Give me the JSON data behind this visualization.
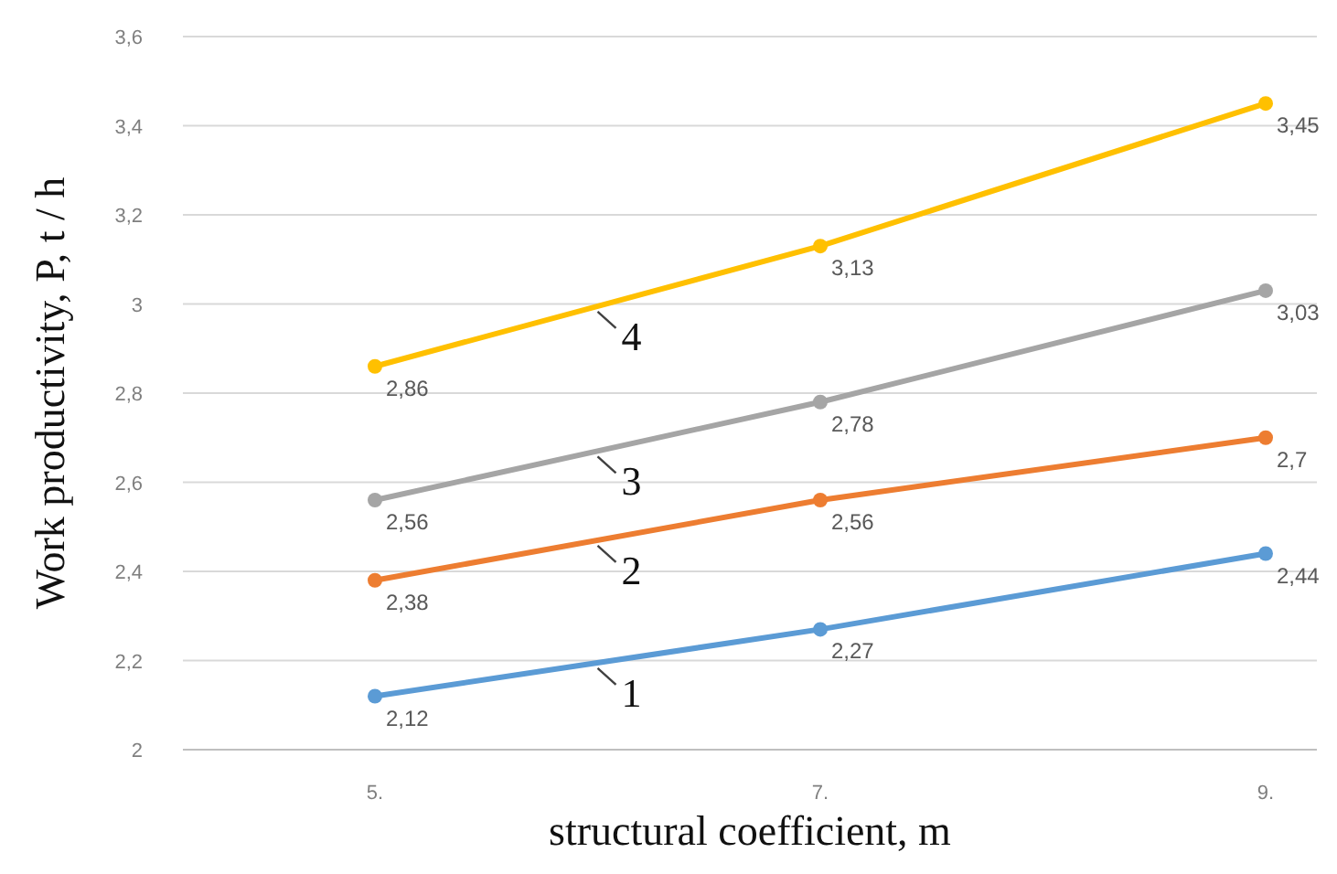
{
  "chart_data": {
    "type": "line",
    "xlabel": "structural coefficient, m",
    "ylabel": "Work productivity, P, t / h",
    "categories": [
      "5.",
      "7.",
      "9."
    ],
    "ylim": [
      2,
      3.6
    ],
    "yticks": [
      2,
      {
        "value": 2.2,
        "label": "2,2"
      },
      {
        "value": 2.4,
        "label": "2,4"
      },
      {
        "value": 2.6,
        "label": "2,6"
      },
      {
        "value": 2.8,
        "label": "2,8"
      },
      3,
      {
        "value": 3.2,
        "label": "3,2"
      },
      {
        "value": 3.4,
        "label": "3,4"
      },
      {
        "value": 3.6,
        "label": "3,6"
      }
    ],
    "grid": "y",
    "marker": "circle",
    "line_style": "solid",
    "legend": false,
    "series": [
      {
        "name": "1",
        "color": "#5b9bd5",
        "values": [
          2.12,
          2.27,
          2.44
        ],
        "value_labels": [
          "2,12",
          "2,27",
          "2,44"
        ]
      },
      {
        "name": "2",
        "color": "#ed7d31",
        "values": [
          2.38,
          2.56,
          2.7
        ],
        "value_labels": [
          "2,38",
          "2,56",
          "2,7"
        ]
      },
      {
        "name": "3",
        "color": "#a5a5a5",
        "values": [
          2.56,
          2.78,
          3.03
        ],
        "value_labels": [
          "2,56",
          "2,78",
          "3,03"
        ]
      },
      {
        "name": "4",
        "color": "#ffc000",
        "values": [
          2.86,
          3.13,
          3.45
        ],
        "value_labels": [
          "2,86",
          "3,13",
          "3,45"
        ]
      }
    ]
  }
}
